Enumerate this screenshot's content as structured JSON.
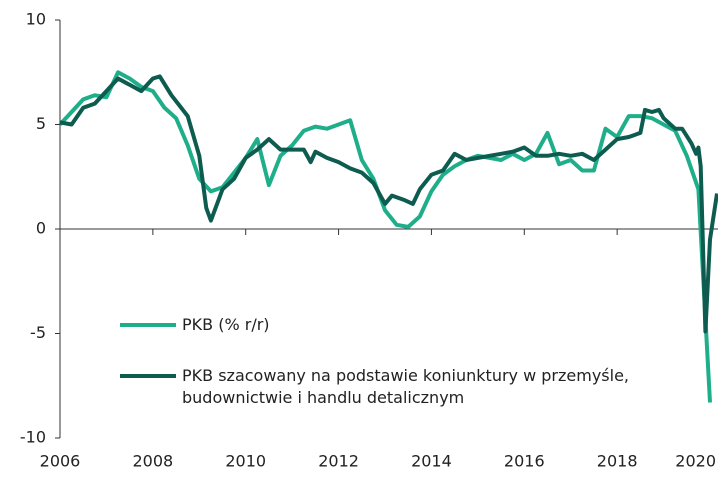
{
  "chart_data": {
    "type": "line",
    "xlim": [
      2006,
      2020.17
    ],
    "xticks": [
      2006,
      2008,
      2010,
      2012,
      2014,
      2016,
      2018,
      2020
    ],
    "ylim": [
      -10,
      10
    ],
    "yticks": [
      10,
      5,
      0,
      -5,
      -10
    ],
    "legend": "lower-left",
    "series": [
      {
        "name": "PKB (% r/r)",
        "color": "#1fae8a",
        "x": [
          2006,
          2006.25,
          2006.5,
          2006.75,
          2007,
          2007.25,
          2007.5,
          2007.75,
          2008,
          2008.25,
          2008.5,
          2008.75,
          2009,
          2009.25,
          2009.5,
          2009.75,
          2010,
          2010.25,
          2010.5,
          2010.75,
          2011,
          2011.25,
          2011.5,
          2011.75,
          2012,
          2012.25,
          2012.5,
          2012.75,
          2013,
          2013.25,
          2013.5,
          2013.75,
          2014,
          2014.25,
          2014.5,
          2014.75,
          2015,
          2015.25,
          2015.5,
          2015.75,
          2016,
          2016.25,
          2016.5,
          2016.75,
          2017,
          2017.25,
          2017.5,
          2017.75,
          2018,
          2018.25,
          2018.5,
          2018.75,
          2019,
          2019.25,
          2019.5,
          2019.75,
          2020
        ],
        "values": [
          5.0,
          5.6,
          6.2,
          6.4,
          6.3,
          7.5,
          7.2,
          6.8,
          6.6,
          5.8,
          5.3,
          4.0,
          2.4,
          1.8,
          2.0,
          2.7,
          3.4,
          4.3,
          2.1,
          3.5,
          4.0,
          4.7,
          4.9,
          4.8,
          5.0,
          5.2,
          3.3,
          2.4,
          0.9,
          0.2,
          0.1,
          0.6,
          1.8,
          2.6,
          3.0,
          3.3,
          3.5,
          3.4,
          3.3,
          3.6,
          3.3,
          3.6,
          4.6,
          3.1,
          3.3,
          2.8,
          2.8,
          4.8,
          4.4,
          5.4,
          5.4,
          5.3,
          5.0,
          4.7,
          3.5,
          1.9,
          -8.3
        ]
      },
      {
        "name": "PKB szacowany na podstawie koniunktury w przemyśle,\nbudownictwie i handlu detalicznym",
        "color": "#0d5c4f",
        "x": [
          2006,
          2006.25,
          2006.5,
          2006.75,
          2007,
          2007.25,
          2007.5,
          2007.75,
          2008,
          2008.15,
          2008.4,
          2008.75,
          2009,
          2009.15,
          2009.25,
          2009.5,
          2009.75,
          2010,
          2010.25,
          2010.5,
          2010.75,
          2011,
          2011.25,
          2011.4,
          2011.5,
          2011.75,
          2012,
          2012.25,
          2012.5,
          2012.75,
          2013,
          2013.15,
          2013.4,
          2013.6,
          2013.75,
          2014,
          2014.25,
          2014.5,
          2014.75,
          2015,
          2015.5,
          2015.75,
          2016,
          2016.25,
          2016.5,
          2016.75,
          2017,
          2017.25,
          2017.5,
          2017.75,
          2018,
          2018.25,
          2018.5,
          2018.6,
          2018.75,
          2018.9,
          2019,
          2019.25,
          2019.4,
          2019.6,
          2019.7,
          2019.75,
          2019.8,
          2019.9,
          2020,
          2020.15
        ],
        "values": [
          5.1,
          5.0,
          5.8,
          6.0,
          6.6,
          7.2,
          6.9,
          6.6,
          7.2,
          7.3,
          6.4,
          5.4,
          3.5,
          1.0,
          0.4,
          1.9,
          2.4,
          3.4,
          3.8,
          4.3,
          3.8,
          3.8,
          3.8,
          3.2,
          3.7,
          3.4,
          3.2,
          2.9,
          2.7,
          2.2,
          1.2,
          1.6,
          1.4,
          1.2,
          1.9,
          2.6,
          2.8,
          3.6,
          3.3,
          3.4,
          3.6,
          3.7,
          3.9,
          3.5,
          3.5,
          3.6,
          3.5,
          3.6,
          3.3,
          3.8,
          4.3,
          4.4,
          4.6,
          5.7,
          5.6,
          5.7,
          5.3,
          4.8,
          4.8,
          4.1,
          3.6,
          3.9,
          3.0,
          -4.9,
          -0.5,
          1.7
        ]
      }
    ]
  }
}
